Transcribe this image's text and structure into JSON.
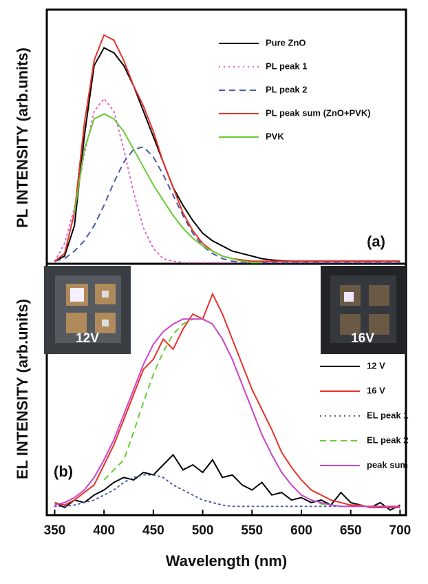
{
  "chart_data": [
    {
      "type": "line",
      "ylabel": "PL INTENSITY (arb.units)",
      "panel_label": "(a)",
      "legend": "upper right",
      "xlim": [
        342,
        706
      ],
      "ylim": [
        0,
        1
      ],
      "x": [
        350,
        360,
        370,
        380,
        390,
        400,
        410,
        420,
        430,
        440,
        450,
        460,
        470,
        480,
        490,
        500,
        510,
        520,
        530,
        540,
        550,
        560,
        570,
        580,
        590,
        600,
        610,
        620,
        630,
        640,
        650,
        660,
        670,
        680,
        690,
        700
      ],
      "series": [
        {
          "name": "Pure ZnO",
          "color": "#000000",
          "dash": "solid",
          "values": [
            0.01,
            0.03,
            0.15,
            0.5,
            0.78,
            0.85,
            0.83,
            0.78,
            0.7,
            0.6,
            0.5,
            0.4,
            0.3,
            0.23,
            0.17,
            0.12,
            0.09,
            0.07,
            0.05,
            0.04,
            0.03,
            0.02,
            0.015,
            0.012,
            0.01,
            0.01,
            0.01,
            0.01,
            0.01,
            0.01,
            0.01,
            0.01,
            0.01,
            0.01,
            0.01,
            0.01
          ]
        },
        {
          "name": "PL peak 1",
          "color": "#e066cc",
          "dash": "dotted",
          "values": [
            0.01,
            0.08,
            0.22,
            0.43,
            0.6,
            0.65,
            0.6,
            0.45,
            0.28,
            0.14,
            0.06,
            0.02,
            0.01,
            0.005,
            0.005,
            0.005,
            0.005,
            0.005,
            0.005,
            0.005,
            0.005,
            0.005,
            0.005,
            0.005,
            0.005,
            0.005,
            0.005,
            0.005,
            0.005,
            0.005,
            0.005,
            0.005,
            0.005,
            0.005,
            0.005,
            0.005
          ]
        },
        {
          "name": "PL peak 2",
          "color": "#4a5aa8",
          "dash": "dashed",
          "values": [
            0.01,
            0.02,
            0.05,
            0.09,
            0.15,
            0.23,
            0.32,
            0.4,
            0.45,
            0.46,
            0.42,
            0.35,
            0.27,
            0.19,
            0.12,
            0.07,
            0.04,
            0.02,
            0.01,
            0.005,
            0.005,
            0.005,
            0.005,
            0.005,
            0.005,
            0.005,
            0.005,
            0.005,
            0.005,
            0.005,
            0.005,
            0.005,
            0.005,
            0.005,
            0.005,
            0.005
          ]
        },
        {
          "name": "PL peak sum (ZnO+PVK)",
          "color": "#e8302a",
          "dash": "solid",
          "values": [
            0.01,
            0.04,
            0.2,
            0.55,
            0.8,
            0.9,
            0.88,
            0.8,
            0.7,
            0.62,
            0.52,
            0.4,
            0.3,
            0.2,
            0.13,
            0.08,
            0.05,
            0.03,
            0.02,
            0.015,
            0.01,
            0.01,
            0.01,
            0.01,
            0.01,
            0.01,
            0.01,
            0.01,
            0.01,
            0.01,
            0.01,
            0.01,
            0.01,
            0.01,
            0.01,
            0.01
          ]
        },
        {
          "name": "PVK",
          "color": "#66cc33",
          "dash": "solid",
          "values": [
            null,
            null,
            0.2,
            0.45,
            0.57,
            0.59,
            0.57,
            0.52,
            0.45,
            0.38,
            0.31,
            0.25,
            0.19,
            0.14,
            0.1,
            0.07,
            0.05,
            0.03,
            0.02,
            0.01,
            0.005,
            0.005,
            null,
            null,
            null,
            null,
            null,
            null,
            null,
            null,
            null,
            null,
            null,
            null,
            null,
            null
          ]
        }
      ]
    },
    {
      "type": "line",
      "ylabel": "EL INTENSITY (arb.units)",
      "xlabel": "Wavelength (nm)",
      "panel_label": "(b)",
      "legend": "lower right",
      "inset_labels": [
        "12V",
        "16V"
      ],
      "xlim": [
        342,
        706
      ],
      "ylim": [
        0,
        1
      ],
      "xticks": [
        350,
        400,
        450,
        500,
        550,
        600,
        650,
        700
      ],
      "x": [
        350,
        360,
        370,
        380,
        390,
        400,
        410,
        420,
        430,
        440,
        450,
        460,
        470,
        480,
        490,
        500,
        510,
        520,
        530,
        540,
        550,
        560,
        570,
        580,
        590,
        600,
        610,
        620,
        630,
        640,
        650,
        660,
        670,
        680,
        690,
        700
      ],
      "series": [
        {
          "name": "12 V",
          "color": "#000000",
          "dash": "solid",
          "values": [
            0.05,
            0.03,
            0.06,
            0.05,
            0.08,
            0.1,
            0.13,
            0.15,
            0.14,
            0.17,
            0.16,
            0.2,
            0.24,
            0.18,
            0.2,
            0.17,
            0.22,
            0.15,
            0.16,
            0.12,
            0.1,
            0.13,
            0.08,
            0.09,
            0.06,
            0.07,
            0.05,
            0.06,
            0.04,
            0.09,
            0.05,
            0.04,
            0.03,
            0.05,
            0.02,
            0.04
          ]
        },
        {
          "name": "16 V",
          "color": "#e8302a",
          "dash": "solid",
          "values": [
            0.05,
            0.04,
            0.06,
            0.09,
            0.12,
            0.2,
            0.28,
            0.38,
            0.48,
            0.58,
            0.62,
            0.7,
            0.66,
            0.74,
            0.8,
            0.78,
            0.88,
            0.8,
            0.7,
            0.6,
            0.5,
            0.42,
            0.34,
            0.25,
            0.19,
            0.14,
            0.1,
            0.08,
            0.06,
            0.05,
            0.04,
            0.04,
            0.03,
            0.03,
            0.03,
            0.03
          ]
        },
        {
          "name": "EL peak 1",
          "color": "#4a5aa8",
          "dash": "dotted",
          "values": [
            0.035,
            0.035,
            0.04,
            0.05,
            0.06,
            0.08,
            0.1,
            0.13,
            0.15,
            0.16,
            0.16,
            0.15,
            0.12,
            0.1,
            0.08,
            0.06,
            0.05,
            0.04,
            0.035,
            0.035,
            0.035,
            0.035,
            0.035,
            0.035,
            0.035,
            0.035,
            0.035,
            0.035,
            0.035,
            0.035,
            0.035,
            0.035,
            0.035,
            0.035,
            0.035,
            0.035
          ]
        },
        {
          "name": "EL peak 2",
          "color": "#66cc33",
          "dash": "dashed",
          "values": [
            null,
            null,
            null,
            null,
            null,
            0.14,
            0.18,
            0.22,
            0.33,
            0.45,
            0.56,
            0.65,
            0.72,
            0.76,
            0.78,
            0.78,
            0.76,
            0.7,
            0.62,
            0.52,
            0.42,
            0.32,
            0.24,
            0.17,
            0.12,
            0.08,
            0.06,
            0.045,
            0.04,
            0.035,
            0.035,
            0.035,
            0.035,
            0.035,
            0.035,
            0.035
          ]
        },
        {
          "name": "peak sum",
          "color": "#cc44cc",
          "dash": "solid",
          "values": [
            0.04,
            0.05,
            0.07,
            0.1,
            0.15,
            0.22,
            0.3,
            0.4,
            0.5,
            0.6,
            0.68,
            0.73,
            0.76,
            0.78,
            0.78,
            0.78,
            0.76,
            0.7,
            0.62,
            0.52,
            0.42,
            0.32,
            0.24,
            0.17,
            0.12,
            0.08,
            0.06,
            0.05,
            0.04,
            0.035,
            0.035,
            0.035,
            0.035,
            0.035,
            0.035,
            0.035
          ]
        }
      ]
    }
  ]
}
